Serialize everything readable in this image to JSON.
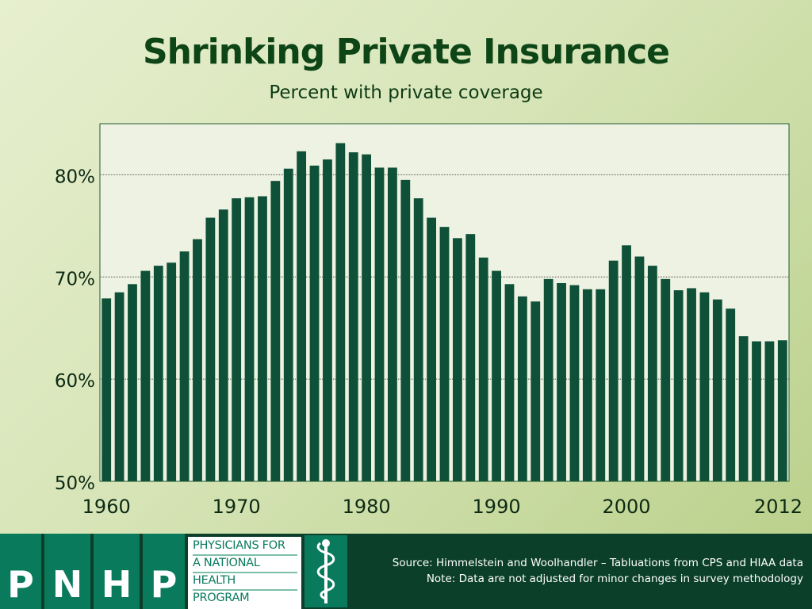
{
  "title": "Shrinking Private Insurance",
  "subtitle": "Percent with private coverage",
  "footer": {
    "logo_letters": [
      "P",
      "N",
      "H",
      "P"
    ],
    "logo_text": [
      "PHYSICIANS FOR",
      "A NATIONAL",
      "HEALTH",
      "PROGRAM"
    ],
    "logo_icon": "caduceus-icon",
    "source": "Source: Himmelstein and Woolhandler – Tabluations from CPS and HIAA data",
    "note": "Note: Data are not adjusted for minor changes in survey methodology"
  },
  "colors": {
    "bar": "#0f5138",
    "plot_bg": "#eef2e2",
    "title": "#0d4517",
    "footer_bg": "#0b3f2a",
    "logo_green": "#0a7a5c"
  },
  "chart_data": {
    "type": "bar",
    "x": [
      1960,
      1961,
      1962,
      1963,
      1964,
      1965,
      1966,
      1967,
      1968,
      1969,
      1970,
      1971,
      1972,
      1973,
      1974,
      1975,
      1976,
      1977,
      1978,
      1979,
      1980,
      1981,
      1982,
      1983,
      1984,
      1985,
      1986,
      1987,
      1988,
      1989,
      1990,
      1991,
      1992,
      1993,
      1994,
      1995,
      1996,
      1997,
      1998,
      1999,
      2000,
      2001,
      2002,
      2003,
      2004,
      2005,
      2006,
      2007,
      2008,
      2009,
      2010,
      2011,
      2012
    ],
    "values": [
      67.9,
      68.5,
      69.3,
      70.6,
      71.1,
      71.4,
      72.5,
      73.7,
      75.8,
      76.6,
      77.7,
      77.8,
      77.9,
      79.4,
      80.6,
      82.3,
      80.9,
      81.5,
      83.1,
      82.2,
      82.0,
      80.7,
      80.7,
      79.5,
      77.7,
      75.8,
      74.9,
      73.8,
      74.2,
      71.9,
      70.6,
      69.3,
      68.1,
      67.6,
      69.8,
      69.4,
      69.2,
      68.8,
      68.8,
      71.6,
      73.1,
      72.0,
      71.1,
      69.8,
      68.7,
      68.9,
      68.5,
      67.8,
      66.9,
      64.2,
      63.7,
      63.7,
      63.8
    ],
    "xticks": [
      "1960",
      "1970",
      "1980",
      "1990",
      "2000",
      "2012"
    ],
    "yticks": [
      "80%",
      "70%",
      "60%",
      "50%"
    ],
    "ylim": [
      50,
      85
    ],
    "grid": "horizontal dotted",
    "title": "Shrinking Private Insurance",
    "subtitle": "Percent with private coverage",
    "xlabel": "",
    "ylabel": ""
  }
}
